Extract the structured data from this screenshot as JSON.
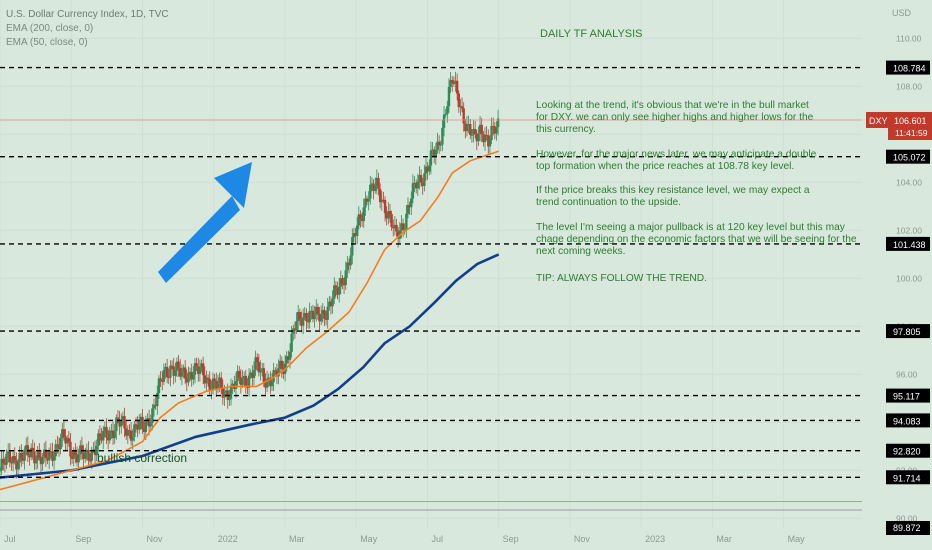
{
  "legend": {
    "symbol_line": "U.S. Dollar Currency Index, 1D, TVC",
    "ema200_line": "EMA (200, close, 0)",
    "ema50_line": "EMA (50, close, 0)"
  },
  "price_axis": {
    "currency": "USD",
    "current_symbol": "DXY",
    "current_price": "106.601",
    "countdown": "11:41:59"
  },
  "colors": {
    "background": "#d9e8dd",
    "up_candle": "#2e8b57",
    "down_candle": "#c0392b",
    "ema50": "#f57c20",
    "ema200": "#123f8c",
    "annotation_text": "#2e7d32",
    "arrow": "#1e88e5",
    "level_line": "#000000",
    "label_bg": "#000000"
  },
  "annotations": {
    "heading": "DAILY TF ANALYSIS",
    "paragraphs": [
      [
        "Looking at the trend, it's obvious that we're in the bull market",
        "for DXY. we can only see higher highs and higher lows for the",
        "this currency."
      ],
      [
        "However, for the major news later, we may anticipate a double",
        "top formation when the price reaches at 108.78 key level."
      ],
      [
        "If the price breaks this key resistance level, we may expect a",
        "trend continuation to the upside."
      ],
      [
        "The level I'm seeing a major pullback is at 120 key level but this may",
        "chage depending on the economic factors that we will be seeing for the",
        "next coming weeks."
      ],
      [
        "TIP: ALWAYS FOLLOW THE TREND."
      ]
    ],
    "bullish_label": "bullish correction"
  },
  "chart_data": {
    "type": "candlestick",
    "title": "U.S. Dollar Currency Index, 1D, TVC",
    "x_ticks": [
      "Jul",
      "Sep",
      "Nov",
      "2022",
      "Mar",
      "May",
      "Jul",
      "Sep",
      "Nov",
      "2023",
      "Mar",
      "May"
    ],
    "x_tick_months": [
      0,
      2,
      4,
      6,
      8,
      10,
      12,
      14,
      16,
      18,
      20,
      22
    ],
    "y_ticks": [
      90.0,
      92.0,
      94.0,
      96.0,
      98.0,
      100.0,
      102.0,
      104.0,
      106.0,
      108.0,
      110.0
    ],
    "y_range": [
      89.6,
      111.6
    ],
    "x_range_months": [
      0,
      24.2
    ],
    "key_levels": [
      108.784,
      105.072,
      101.438,
      97.805,
      95.117,
      94.083,
      92.82,
      91.714
    ],
    "thin_levels": [
      90.7,
      90.35
    ],
    "bottom_level_label": "89.872",
    "current_price": 106.601,
    "price_path": [
      [
        0,
        92.0
      ],
      [
        0.3,
        92.6
      ],
      [
        0.6,
        92.4
      ],
      [
        0.9,
        92.9
      ],
      [
        1.2,
        92.3
      ],
      [
        1.5,
        92.9
      ],
      [
        1.8,
        93.3
      ],
      [
        2.1,
        92.7
      ],
      [
        2.4,
        92.5
      ],
      [
        2.7,
        93.1
      ],
      [
        3.0,
        93.5
      ],
      [
        3.3,
        94.0
      ],
      [
        3.6,
        93.6
      ],
      [
        3.9,
        93.9
      ],
      [
        4.0,
        93.6
      ],
      [
        4.3,
        94.6
      ],
      [
        4.6,
        96.0
      ],
      [
        4.8,
        96.4
      ],
      [
        5.1,
        95.9
      ],
      [
        5.4,
        96.2
      ],
      [
        5.7,
        96.0
      ],
      [
        6.0,
        95.6
      ],
      [
        6.3,
        95.2
      ],
      [
        6.6,
        95.6
      ],
      [
        6.9,
        95.8
      ],
      [
        7.2,
        96.3
      ],
      [
        7.4,
        95.9
      ],
      [
        7.7,
        95.8
      ],
      [
        8.0,
        96.5
      ],
      [
        8.3,
        98.0
      ],
      [
        8.6,
        98.6
      ],
      [
        8.9,
        98.3
      ],
      [
        9.2,
        98.8
      ],
      [
        9.5,
        99.5
      ],
      [
        9.8,
        100.8
      ],
      [
        10.1,
        102.5
      ],
      [
        10.3,
        103.5
      ],
      [
        10.6,
        103.8
      ],
      [
        10.8,
        103.1
      ],
      [
        11.1,
        101.7
      ],
      [
        11.4,
        102.6
      ],
      [
        11.7,
        104.0
      ],
      [
        12.0,
        104.6
      ],
      [
        12.3,
        105.5
      ],
      [
        12.5,
        107.0
      ],
      [
        12.7,
        108.2
      ],
      [
        12.9,
        107.5
      ],
      [
        13.1,
        106.2
      ],
      [
        13.3,
        105.8
      ],
      [
        13.5,
        106.4
      ],
      [
        13.7,
        105.5
      ],
      [
        13.9,
        106.3
      ],
      [
        14.0,
        106.6
      ]
    ],
    "ema50_path": [
      [
        0,
        91.2
      ],
      [
        1.5,
        91.8
      ],
      [
        3.0,
        92.4
      ],
      [
        4.0,
        93.2
      ],
      [
        4.5,
        94.2
      ],
      [
        5.0,
        94.8
      ],
      [
        5.8,
        95.3
      ],
      [
        6.5,
        95.5
      ],
      [
        7.2,
        95.5
      ],
      [
        7.6,
        95.8
      ],
      [
        8.0,
        96.2
      ],
      [
        8.6,
        97.1
      ],
      [
        9.2,
        97.8
      ],
      [
        9.8,
        98.6
      ],
      [
        10.3,
        99.8
      ],
      [
        10.8,
        101.2
      ],
      [
        11.3,
        101.9
      ],
      [
        11.8,
        102.4
      ],
      [
        12.3,
        103.4
      ],
      [
        12.7,
        104.4
      ],
      [
        13.2,
        104.9
      ],
      [
        13.6,
        105.1
      ],
      [
        14.0,
        105.3
      ]
    ],
    "ema200_path": [
      [
        0,
        91.7
      ],
      [
        2.0,
        92.0
      ],
      [
        4.0,
        92.6
      ],
      [
        5.5,
        93.4
      ],
      [
        7.0,
        93.9
      ],
      [
        8.0,
        94.2
      ],
      [
        8.8,
        94.7
      ],
      [
        9.5,
        95.4
      ],
      [
        10.2,
        96.3
      ],
      [
        10.8,
        97.3
      ],
      [
        11.5,
        98.0
      ],
      [
        12.2,
        99.0
      ],
      [
        12.8,
        99.9
      ],
      [
        13.4,
        100.6
      ],
      [
        14.0,
        101.0
      ]
    ]
  }
}
